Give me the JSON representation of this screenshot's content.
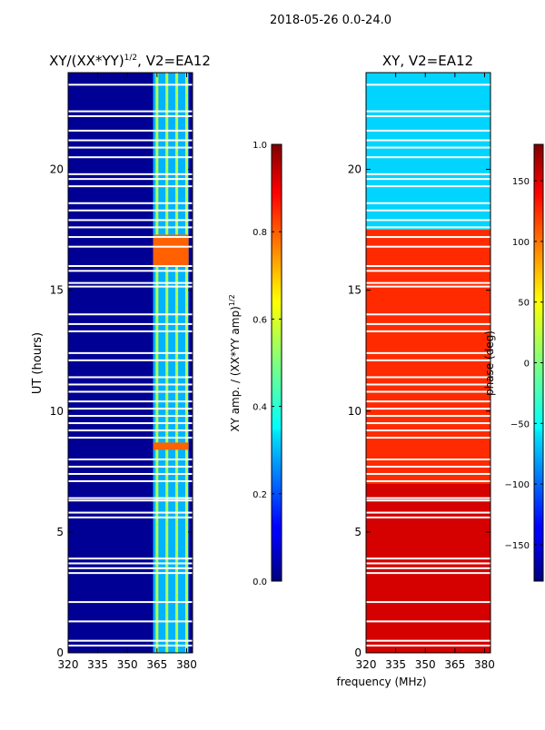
{
  "figure": {
    "suptitle": "2018-05-26 0.0-24.0",
    "xlabel_shared": "frequency (MHz)"
  },
  "chart_data": [
    {
      "type": "heatmap",
      "title_main": "XY/(XX*YY)",
      "title_sup": "1/2",
      "title_tail": ", V2=EA12",
      "xlabel": "",
      "ylabel": "UT (hours)",
      "xlim": [
        320,
        383
      ],
      "ylim": [
        0,
        24
      ],
      "xticks": [
        320,
        335,
        350,
        365,
        380
      ],
      "xtick_labels": [
        "320",
        "335",
        "350",
        "365",
        "380"
      ],
      "yticks": [
        0,
        5,
        10,
        15,
        20
      ],
      "ytick_labels": [
        "0",
        "5",
        "10",
        "15",
        "20"
      ],
      "colorbar": {
        "label_main": "XY amp. / (XX*YY amp)",
        "label_sup": "1/2",
        "range": [
          0.0,
          1.0
        ],
        "ticks": [
          0.0,
          0.2,
          0.4,
          0.6,
          0.8,
          1.0
        ],
        "tick_labels": [
          "0.0",
          "0.2",
          "0.4",
          "0.6",
          "0.8",
          "1.0"
        ],
        "colormap": "jet"
      },
      "data_gaps_ut": [
        23.5,
        22.4,
        22.2,
        21.6,
        21.2,
        20.9,
        20.5,
        19.8,
        19.6,
        19.3,
        18.6,
        18.3,
        17.9,
        17.6,
        17.2,
        16.8,
        16.0,
        15.8,
        15.3,
        15.15,
        14.0,
        13.6,
        13.3,
        12.4,
        12.1,
        11.4,
        11.1,
        10.8,
        10.4,
        10.1,
        9.8,
        9.5,
        9.2,
        8.9,
        8.0,
        7.7,
        7.4,
        7.1,
        6.4,
        6.3,
        5.8,
        5.6,
        3.9,
        3.7,
        3.5,
        3.3,
        2.1,
        1.3,
        0.5,
        0.3
      ],
      "rfi_band_mhz": [
        363,
        381
      ],
      "rfi_channels_mhz": [
        365,
        370,
        375,
        380
      ],
      "rfi_high_bursts_ut": [
        [
          16.0,
          17.3
        ],
        [
          8.4,
          8.7
        ]
      ],
      "background_amplitude": 0.02,
      "rfi_amplitude": 0.3
    },
    {
      "type": "heatmap",
      "title_main": "XY, V2=EA12",
      "xlabel": "frequency (MHz)",
      "ylabel": "",
      "xlim": [
        320,
        383
      ],
      "ylim": [
        0,
        24
      ],
      "xticks": [
        320,
        335,
        350,
        365,
        380
      ],
      "xtick_labels": [
        "320",
        "335",
        "350",
        "365",
        "380"
      ],
      "yticks": [
        0,
        5,
        10,
        15,
        20
      ],
      "ytick_labels": [
        "0",
        "5",
        "10",
        "15",
        "20"
      ],
      "colorbar": {
        "label": "phase (deg)",
        "range": [
          -180,
          180
        ],
        "ticks": [
          -150,
          -100,
          -50,
          0,
          50,
          100,
          150
        ],
        "tick_labels": [
          "−150",
          "−100",
          "−50",
          "0",
          "50",
          "100",
          "150"
        ],
        "colormap": "jet"
      },
      "data_gaps_ut": [
        23.5,
        22.4,
        22.2,
        21.6,
        21.2,
        20.9,
        20.5,
        19.8,
        19.6,
        19.3,
        18.6,
        18.3,
        17.9,
        17.6,
        17.2,
        16.8,
        16.0,
        15.8,
        15.3,
        15.15,
        14.0,
        13.6,
        13.3,
        12.4,
        12.1,
        11.4,
        11.1,
        10.8,
        10.4,
        10.1,
        9.8,
        9.5,
        9.2,
        8.9,
        8.0,
        7.7,
        7.4,
        7.1,
        6.4,
        6.3,
        5.8,
        5.6,
        3.9,
        3.7,
        3.5,
        3.3,
        2.1,
        1.3,
        0.5,
        0.3
      ],
      "phase_by_ut": [
        {
          "ut": [
            17.5,
            24.0
          ],
          "phase_deg": -60
        },
        {
          "ut": [
            7.0,
            17.5
          ],
          "phase_deg": 120
        },
        {
          "ut": [
            0.0,
            7.0
          ],
          "phase_deg": 150
        }
      ]
    }
  ]
}
